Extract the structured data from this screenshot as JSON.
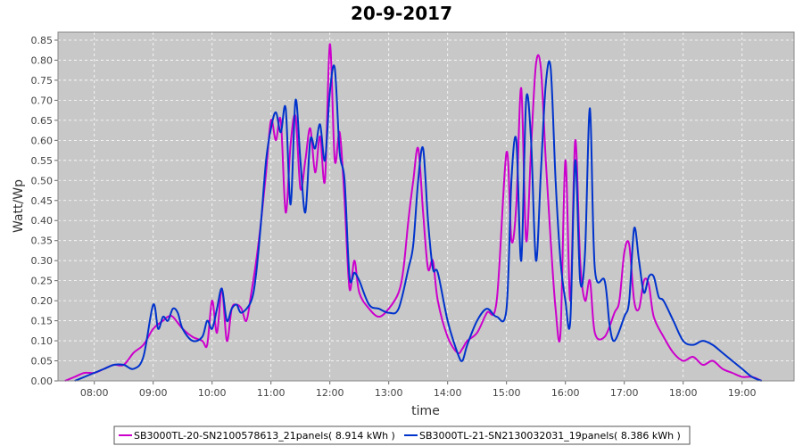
{
  "chart_data": {
    "type": "line",
    "title": "20-9-2017",
    "xlabel": "time",
    "ylabel": "Watt/Wp",
    "x_ticks": [
      "08:00",
      "09:00",
      "10:00",
      "11:00",
      "12:00",
      "13:00",
      "14:00",
      "15:00",
      "16:00",
      "17:00",
      "18:00",
      "19:00"
    ],
    "y_ticks": [
      "0.00",
      "0.05",
      "0.10",
      "0.15",
      "0.20",
      "0.25",
      "0.30",
      "0.35",
      "0.40",
      "0.45",
      "0.50",
      "0.55",
      "0.60",
      "0.65",
      "0.70",
      "0.75",
      "0.80",
      "0.85"
    ],
    "xlim": [
      "07:23",
      "19:53"
    ],
    "ylim": [
      0,
      0.87
    ],
    "grid": true,
    "legend_position": "bottom",
    "series": [
      {
        "name": "SB3000TL-20-SN2100578613_21panels( 8.914 kWh )",
        "color": "#cc00cc",
        "points": [
          [
            "07:30",
            0.0
          ],
          [
            "07:40",
            0.01
          ],
          [
            "07:50",
            0.02
          ],
          [
            "08:00",
            0.02
          ],
          [
            "08:10",
            0.03
          ],
          [
            "08:20",
            0.04
          ],
          [
            "08:30",
            0.04
          ],
          [
            "08:40",
            0.07
          ],
          [
            "08:50",
            0.09
          ],
          [
            "09:00",
            0.13
          ],
          [
            "09:10",
            0.15
          ],
          [
            "09:15",
            0.16
          ],
          [
            "09:20",
            0.16
          ],
          [
            "09:30",
            0.13
          ],
          [
            "09:40",
            0.11
          ],
          [
            "09:50",
            0.1
          ],
          [
            "09:55",
            0.09
          ],
          [
            "10:00",
            0.2
          ],
          [
            "10:05",
            0.12
          ],
          [
            "10:10",
            0.23
          ],
          [
            "10:15",
            0.1
          ],
          [
            "10:20",
            0.18
          ],
          [
            "10:25",
            0.19
          ],
          [
            "10:30",
            0.18
          ],
          [
            "10:35",
            0.15
          ],
          [
            "10:40",
            0.22
          ],
          [
            "10:45",
            0.3
          ],
          [
            "10:50",
            0.4
          ],
          [
            "10:55",
            0.52
          ],
          [
            "11:00",
            0.65
          ],
          [
            "11:05",
            0.6
          ],
          [
            "11:10",
            0.65
          ],
          [
            "11:15",
            0.42
          ],
          [
            "11:20",
            0.59
          ],
          [
            "11:25",
            0.66
          ],
          [
            "11:30",
            0.48
          ],
          [
            "11:35",
            0.55
          ],
          [
            "11:40",
            0.63
          ],
          [
            "11:45",
            0.52
          ],
          [
            "11:50",
            0.61
          ],
          [
            "11:55",
            0.5
          ],
          [
            "12:00",
            0.84
          ],
          [
            "12:05",
            0.55
          ],
          [
            "12:10",
            0.62
          ],
          [
            "12:15",
            0.45
          ],
          [
            "12:20",
            0.23
          ],
          [
            "12:25",
            0.3
          ],
          [
            "12:30",
            0.22
          ],
          [
            "12:40",
            0.18
          ],
          [
            "12:50",
            0.16
          ],
          [
            "13:00",
            0.18
          ],
          [
            "13:10",
            0.22
          ],
          [
            "13:15",
            0.28
          ],
          [
            "13:20",
            0.4
          ],
          [
            "13:25",
            0.5
          ],
          [
            "13:30",
            0.58
          ],
          [
            "13:35",
            0.42
          ],
          [
            "13:40",
            0.28
          ],
          [
            "13:45",
            0.3
          ],
          [
            "13:50",
            0.2
          ],
          [
            "14:00",
            0.11
          ],
          [
            "14:10",
            0.07
          ],
          [
            "14:15",
            0.08
          ],
          [
            "14:20",
            0.1
          ],
          [
            "14:30",
            0.12
          ],
          [
            "14:40",
            0.17
          ],
          [
            "14:50",
            0.2
          ],
          [
            "15:00",
            0.57
          ],
          [
            "15:05",
            0.35
          ],
          [
            "15:10",
            0.44
          ],
          [
            "15:15",
            0.73
          ],
          [
            "15:20",
            0.35
          ],
          [
            "15:25",
            0.58
          ],
          [
            "15:30",
            0.79
          ],
          [
            "15:35",
            0.78
          ],
          [
            "15:40",
            0.55
          ],
          [
            "15:45",
            0.35
          ],
          [
            "15:50",
            0.18
          ],
          [
            "15:55",
            0.12
          ],
          [
            "16:00",
            0.55
          ],
          [
            "16:05",
            0.2
          ],
          [
            "16:10",
            0.6
          ],
          [
            "16:15",
            0.3
          ],
          [
            "16:20",
            0.2
          ],
          [
            "16:25",
            0.25
          ],
          [
            "16:30",
            0.12
          ],
          [
            "16:40",
            0.11
          ],
          [
            "16:50",
            0.17
          ],
          [
            "16:55",
            0.2
          ],
          [
            "17:00",
            0.32
          ],
          [
            "17:05",
            0.34
          ],
          [
            "17:10",
            0.2
          ],
          [
            "17:15",
            0.18
          ],
          [
            "17:20",
            0.25
          ],
          [
            "17:25",
            0.24
          ],
          [
            "17:30",
            0.16
          ],
          [
            "17:40",
            0.11
          ],
          [
            "17:50",
            0.07
          ],
          [
            "18:00",
            0.05
          ],
          [
            "18:10",
            0.06
          ],
          [
            "18:20",
            0.04
          ],
          [
            "18:30",
            0.05
          ],
          [
            "18:40",
            0.03
          ],
          [
            "18:50",
            0.02
          ],
          [
            "19:00",
            0.01
          ],
          [
            "19:10",
            0.01
          ],
          [
            "19:20",
            0.0
          ]
        ]
      },
      {
        "name": "SB3000TL-21-SN2130032031_19panels( 8.386 kWh )",
        "color": "#0033cc",
        "points": [
          [
            "07:40",
            0.0
          ],
          [
            "07:50",
            0.01
          ],
          [
            "08:00",
            0.02
          ],
          [
            "08:10",
            0.03
          ],
          [
            "08:20",
            0.04
          ],
          [
            "08:30",
            0.04
          ],
          [
            "08:40",
            0.03
          ],
          [
            "08:50",
            0.06
          ],
          [
            "09:00",
            0.19
          ],
          [
            "09:05",
            0.13
          ],
          [
            "09:10",
            0.16
          ],
          [
            "09:15",
            0.15
          ],
          [
            "09:20",
            0.18
          ],
          [
            "09:25",
            0.17
          ],
          [
            "09:30",
            0.13
          ],
          [
            "09:40",
            0.1
          ],
          [
            "09:50",
            0.11
          ],
          [
            "09:55",
            0.15
          ],
          [
            "10:00",
            0.13
          ],
          [
            "10:05",
            0.18
          ],
          [
            "10:10",
            0.23
          ],
          [
            "10:15",
            0.15
          ],
          [
            "10:20",
            0.18
          ],
          [
            "10:25",
            0.19
          ],
          [
            "10:30",
            0.17
          ],
          [
            "10:40",
            0.2
          ],
          [
            "10:45",
            0.27
          ],
          [
            "10:50",
            0.4
          ],
          [
            "10:55",
            0.55
          ],
          [
            "11:00",
            0.63
          ],
          [
            "11:05",
            0.67
          ],
          [
            "11:10",
            0.62
          ],
          [
            "11:15",
            0.68
          ],
          [
            "11:20",
            0.44
          ],
          [
            "11:25",
            0.7
          ],
          [
            "11:30",
            0.55
          ],
          [
            "11:35",
            0.42
          ],
          [
            "11:40",
            0.6
          ],
          [
            "11:45",
            0.58
          ],
          [
            "11:50",
            0.64
          ],
          [
            "11:55",
            0.55
          ],
          [
            "12:00",
            0.72
          ],
          [
            "12:05",
            0.78
          ],
          [
            "12:10",
            0.57
          ],
          [
            "12:15",
            0.5
          ],
          [
            "12:20",
            0.26
          ],
          [
            "12:25",
            0.27
          ],
          [
            "12:30",
            0.25
          ],
          [
            "12:40",
            0.19
          ],
          [
            "12:50",
            0.18
          ],
          [
            "13:00",
            0.17
          ],
          [
            "13:10",
            0.18
          ],
          [
            "13:20",
            0.28
          ],
          [
            "13:25",
            0.34
          ],
          [
            "13:30",
            0.5
          ],
          [
            "13:35",
            0.58
          ],
          [
            "13:40",
            0.4
          ],
          [
            "13:45",
            0.28
          ],
          [
            "13:50",
            0.27
          ],
          [
            "14:00",
            0.15
          ],
          [
            "14:10",
            0.07
          ],
          [
            "14:15",
            0.05
          ],
          [
            "14:20",
            0.09
          ],
          [
            "14:30",
            0.15
          ],
          [
            "14:40",
            0.18
          ],
          [
            "14:50",
            0.16
          ],
          [
            "15:00",
            0.18
          ],
          [
            "15:05",
            0.5
          ],
          [
            "15:10",
            0.6
          ],
          [
            "15:15",
            0.3
          ],
          [
            "15:20",
            0.7
          ],
          [
            "15:25",
            0.6
          ],
          [
            "15:30",
            0.3
          ],
          [
            "15:35",
            0.52
          ],
          [
            "15:40",
            0.74
          ],
          [
            "15:45",
            0.78
          ],
          [
            "15:50",
            0.5
          ],
          [
            "15:55",
            0.3
          ],
          [
            "16:00",
            0.2
          ],
          [
            "16:05",
            0.15
          ],
          [
            "16:10",
            0.55
          ],
          [
            "16:15",
            0.25
          ],
          [
            "16:20",
            0.32
          ],
          [
            "16:25",
            0.68
          ],
          [
            "16:30",
            0.28
          ],
          [
            "16:40",
            0.25
          ],
          [
            "16:45",
            0.14
          ],
          [
            "16:50",
            0.1
          ],
          [
            "17:00",
            0.16
          ],
          [
            "17:05",
            0.2
          ],
          [
            "17:10",
            0.38
          ],
          [
            "17:15",
            0.3
          ],
          [
            "17:20",
            0.22
          ],
          [
            "17:25",
            0.26
          ],
          [
            "17:30",
            0.26
          ],
          [
            "17:35",
            0.21
          ],
          [
            "17:40",
            0.2
          ],
          [
            "17:50",
            0.15
          ],
          [
            "18:00",
            0.1
          ],
          [
            "18:10",
            0.09
          ],
          [
            "18:20",
            0.1
          ],
          [
            "18:30",
            0.09
          ],
          [
            "18:40",
            0.07
          ],
          [
            "18:50",
            0.05
          ],
          [
            "19:00",
            0.03
          ],
          [
            "19:10",
            0.01
          ],
          [
            "19:20",
            0.0
          ]
        ]
      }
    ]
  }
}
